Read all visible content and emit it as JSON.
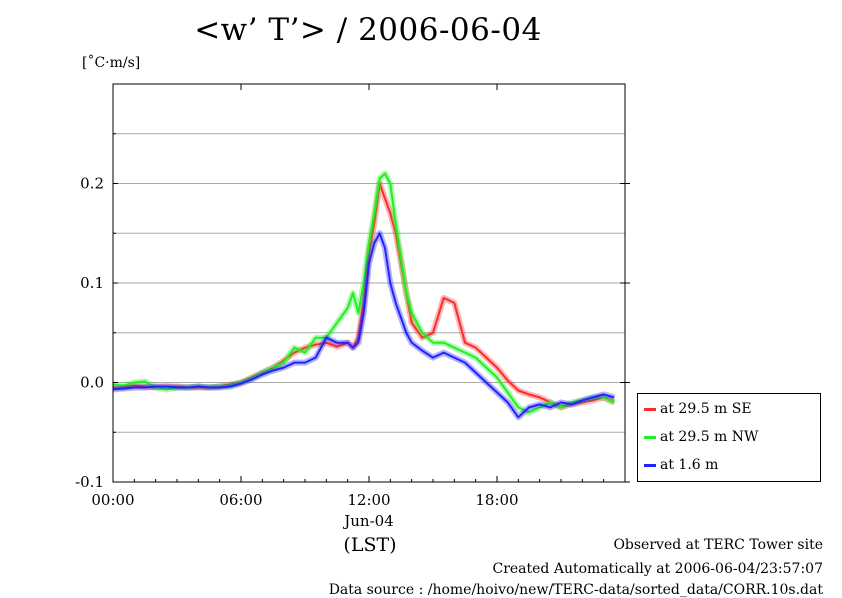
{
  "chart_data": {
    "type": "line",
    "title": "<w’ T’> / 2006-06-04",
    "ylabel": "[˚C·m/s]",
    "xlabel": "(LST)",
    "x_date_label": "Jun-04",
    "ylim": [
      -0.1,
      0.3
    ],
    "xlim_hours": [
      0,
      24
    ],
    "x_ticks": [
      {
        "value": 0,
        "label": "00:00"
      },
      {
        "value": 6,
        "label": "06:00"
      },
      {
        "value": 12,
        "label": "12:00"
      },
      {
        "value": 18,
        "label": "18:00"
      }
    ],
    "y_ticks": [
      {
        "value": -0.1,
        "label": "-0.1"
      },
      {
        "value": 0.0,
        "label": "0.0"
      },
      {
        "value": 0.1,
        "label": "0.1"
      },
      {
        "value": 0.2,
        "label": "0.2"
      }
    ],
    "grid": true,
    "legend_position": "bottom-right, outside plot",
    "x": [
      0,
      0.5,
      1,
      1.5,
      2,
      2.5,
      3,
      3.5,
      4,
      4.5,
      5,
      5.5,
      6,
      6.5,
      7,
      7.5,
      8,
      8.5,
      9,
      9.5,
      10,
      10.5,
      11,
      11.25,
      11.5,
      11.75,
      12,
      12.25,
      12.5,
      12.75,
      13,
      13.25,
      13.5,
      13.75,
      14,
      14.5,
      15,
      15.5,
      16,
      16.5,
      17,
      17.5,
      18,
      18.5,
      19,
      19.5,
      20,
      20.5,
      21,
      21.5,
      22,
      22.5,
      23,
      23.5
    ],
    "series": [
      {
        "name": "at 29.5 m SE",
        "color": "#ff2a2a",
        "values": [
          -0.005,
          -0.005,
          -0.003,
          -0.004,
          -0.005,
          -0.004,
          -0.004,
          -0.005,
          -0.005,
          -0.005,
          -0.004,
          -0.002,
          0.0,
          0.005,
          0.01,
          0.015,
          0.022,
          0.03,
          0.035,
          0.038,
          0.04,
          0.036,
          0.04,
          0.035,
          0.045,
          0.08,
          0.13,
          0.16,
          0.2,
          0.185,
          0.17,
          0.15,
          0.12,
          0.09,
          0.06,
          0.045,
          0.05,
          0.085,
          0.08,
          0.04,
          0.035,
          0.025,
          0.015,
          0.002,
          -0.008,
          -0.012,
          -0.015,
          -0.02,
          -0.025,
          -0.022,
          -0.02,
          -0.018,
          -0.015,
          -0.02
        ]
      },
      {
        "name": "at 29.5 m NW",
        "color": "#22ee22",
        "values": [
          -0.002,
          -0.003,
          0.0,
          0.001,
          -0.005,
          -0.007,
          -0.005,
          -0.005,
          -0.004,
          -0.005,
          -0.004,
          -0.003,
          0.0,
          0.004,
          0.01,
          0.015,
          0.02,
          0.035,
          0.03,
          0.045,
          0.045,
          0.06,
          0.075,
          0.09,
          0.07,
          0.1,
          0.14,
          0.17,
          0.205,
          0.21,
          0.2,
          0.16,
          0.125,
          0.09,
          0.07,
          0.05,
          0.04,
          0.04,
          0.035,
          0.03,
          0.025,
          0.015,
          0.005,
          -0.01,
          -0.025,
          -0.03,
          -0.025,
          -0.02,
          -0.025,
          -0.02,
          -0.018,
          -0.015,
          -0.015,
          -0.02
        ]
      },
      {
        "name": "at 1.6 m",
        "color": "#2222ff",
        "values": [
          -0.007,
          -0.006,
          -0.005,
          -0.005,
          -0.004,
          -0.004,
          -0.005,
          -0.005,
          -0.004,
          -0.005,
          -0.005,
          -0.004,
          -0.001,
          0.003,
          0.008,
          0.012,
          0.015,
          0.02,
          0.02,
          0.025,
          0.045,
          0.04,
          0.04,
          0.035,
          0.04,
          0.07,
          0.12,
          0.14,
          0.15,
          0.135,
          0.1,
          0.08,
          0.065,
          0.05,
          0.04,
          0.032,
          0.025,
          0.03,
          0.025,
          0.02,
          0.01,
          0.0,
          -0.01,
          -0.02,
          -0.035,
          -0.025,
          -0.022,
          -0.025,
          -0.02,
          -0.022,
          -0.018,
          -0.015,
          -0.012,
          -0.015
        ]
      }
    ]
  },
  "footer": {
    "line1": "Observed at TERC Tower site",
    "line2": "Created Automatically at 2006-06-04/23:57:07",
    "line3": "Data source : /home/hoivo/new/TERC-data/sorted_data/CORR.10s.dat"
  }
}
